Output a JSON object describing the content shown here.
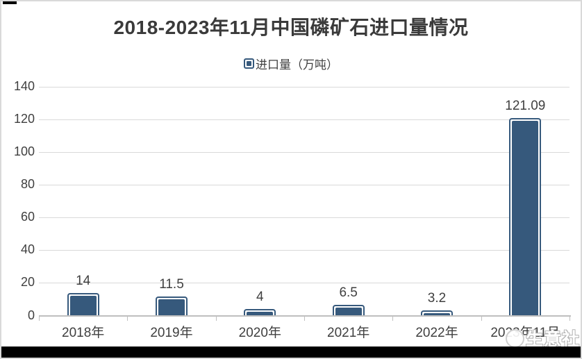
{
  "title": "2018-2023年11月中国磷矿石进口量情况",
  "legend": {
    "label": "进口量（万吨）"
  },
  "watermark": {
    "text": "生意社",
    "logo": "circle-logo"
  },
  "colors": {
    "bar": "#36597c",
    "grid": "#d9d9d9",
    "axis": "#bfbfbf",
    "label": "#3f3f3f",
    "title": "#3a3a3a",
    "border": "#d9d9d9",
    "bg": "#ffffff",
    "bottom": "#000000"
  },
  "chart_data": {
    "type": "bar",
    "title": "2018-2023年11月中国磷矿石进口量情况",
    "categories": [
      "2018年",
      "2019年",
      "2020年",
      "2021年",
      "2022年",
      "2023年11月"
    ],
    "values": [
      14,
      11.5,
      4,
      6.5,
      3.2,
      121.09
    ],
    "value_labels": [
      "14",
      "11.5",
      "4",
      "6.5",
      "3.2",
      "121.09"
    ],
    "series_name": "进口量",
    "unit": "万吨",
    "xlabel": "",
    "ylabel": "进口量（万吨）",
    "ylim": [
      0,
      140
    ],
    "yticks": [
      0,
      20,
      40,
      60,
      80,
      100,
      120,
      140
    ],
    "grid": true,
    "legend_position": "top",
    "bar_color": "#36597c"
  }
}
